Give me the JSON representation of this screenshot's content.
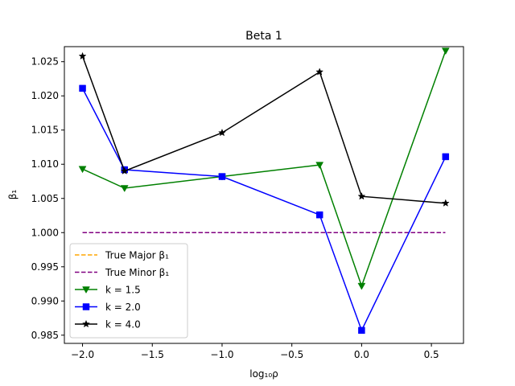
{
  "chart_data": {
    "type": "line",
    "title": "Beta 1",
    "xlabel": "log₁₀ρ",
    "ylabel": "β₁",
    "xlim": [
      -2.13,
      0.73
    ],
    "ylim": [
      0.9838,
      1.0272
    ],
    "xticks": [
      -2.0,
      -1.5,
      -1.0,
      -0.5,
      0.0,
      0.5
    ],
    "xtick_labels": [
      "−2.0",
      "−1.5",
      "−1.0",
      "−0.5",
      "0.0",
      "0.5"
    ],
    "yticks": [
      0.985,
      0.99,
      0.995,
      1.0,
      1.005,
      1.01,
      1.015,
      1.02,
      1.025
    ],
    "ytick_labels": [
      "0.985",
      "0.990",
      "0.995",
      "1.000",
      "1.005",
      "1.010",
      "1.015",
      "1.020",
      "1.025"
    ],
    "grid": false,
    "legend_position": "lower-left",
    "reference_lines": [
      {
        "name": "True Major β₁",
        "y": null,
        "color": "#ffa500",
        "style": "dashed",
        "x_range": [
          -2.0,
          0.6
        ]
      },
      {
        "name": "True Minor β₁",
        "y": 1.0,
        "color": "#800080",
        "style": "dashed",
        "x_range": [
          -2.0,
          0.6
        ]
      }
    ],
    "series": [
      {
        "name": "k = 1.5",
        "color": "#008000",
        "marker": "triangle-down",
        "x": [
          -2.0,
          -1.699,
          -1.0,
          -0.301,
          0.0,
          0.602
        ],
        "y": [
          1.0093,
          1.0065,
          1.0082,
          1.0099,
          0.9922,
          1.0266
        ]
      },
      {
        "name": "k = 2.0",
        "color": "#0000ff",
        "marker": "square",
        "x": [
          -2.0,
          -1.699,
          -1.0,
          -0.301,
          0.0,
          0.602
        ],
        "y": [
          1.0211,
          1.0092,
          1.0082,
          1.0026,
          0.9857,
          1.0111
        ]
      },
      {
        "name": "k = 4.0",
        "color": "#000000",
        "marker": "star",
        "x": [
          -2.0,
          -1.699,
          -1.0,
          -0.301,
          0.0,
          0.602
        ],
        "y": [
          1.0258,
          1.009,
          1.0146,
          1.0235,
          1.0053,
          1.0043
        ]
      }
    ]
  }
}
